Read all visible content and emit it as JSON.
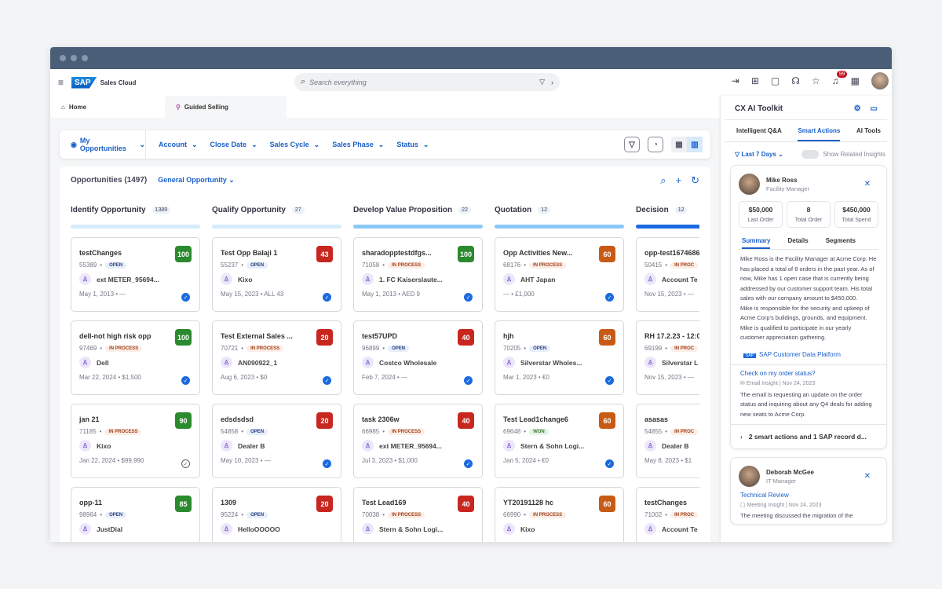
{
  "app": {
    "brand": "SAP",
    "product": "Sales Cloud",
    "search_placeholder": "Search everything",
    "notification_count": "99"
  },
  "tabs": [
    {
      "label": "Home",
      "icon": "home-icon"
    },
    {
      "label": "Guided Selling",
      "icon": "guided-selling-icon",
      "active": true
    }
  ],
  "filters": {
    "my": "My Opportunities",
    "items": [
      "Account",
      "Close Date",
      "Sales Cycle",
      "Sales Phase",
      "Status"
    ]
  },
  "board": {
    "title": "Opportunities (1497)",
    "type": "General Opportunity"
  },
  "colors": {
    "green": "#2b8a2e",
    "red": "#c8271f",
    "orange": "#c75b16",
    "accent": "#1a5fc9"
  },
  "columns": [
    {
      "name": "Identify Opportunity",
      "count": "1389",
      "bar": "#d6ecfb",
      "cards": [
        {
          "title": "testChanges",
          "id": "55389",
          "status": "OPEN",
          "account": "ext METER_95694...",
          "date": "May 1, 2013 • —",
          "score": "100",
          "color": "green",
          "check": "filled"
        },
        {
          "title": "dell-not high risk opp",
          "id": "97469",
          "status": "IN PROCESS",
          "account": "Dell",
          "date": "Mar 22, 2024 • $1,500",
          "score": "100",
          "color": "green",
          "check": "filled"
        },
        {
          "title": "jan 21",
          "id": "71185",
          "status": "IN PROCESS",
          "account": "Kixo",
          "date": "Jan 22, 2024 • $99,990",
          "score": "90",
          "color": "green",
          "check": "outline"
        },
        {
          "title": "opp-11",
          "id": "98964",
          "status": "OPEN",
          "account": "JustDial",
          "score": "85",
          "color": "green"
        }
      ]
    },
    {
      "name": "Qualify Opportunity",
      "count": "27",
      "bar": "#d6ecfb",
      "cards": [
        {
          "title": "Test Opp Balaji 1",
          "id": "55237",
          "status": "OPEN",
          "account": "Kixo",
          "date": "May 15, 2023 • ALL 43",
          "score": "43",
          "color": "red",
          "check": "filled"
        },
        {
          "title": "Test External Sales ...",
          "id": "70721",
          "status": "IN PROCESS",
          "account": "AN090922_1",
          "date": "Aug 6, 2023 • $0",
          "score": "20",
          "color": "red",
          "check": "filled"
        },
        {
          "title": "edsdsdsd",
          "id": "54858",
          "status": "OPEN",
          "account": "Dealer B",
          "date": "May 10, 2023 • —",
          "score": "20",
          "color": "red",
          "check": "filled"
        },
        {
          "title": "1309",
          "id": "95224",
          "status": "OPEN",
          "account": "HelloOOOOO",
          "score": "20",
          "color": "red"
        }
      ]
    },
    {
      "name": "Develop Value Proposition",
      "count": "22",
      "bar": "#8cc8f5",
      "cards": [
        {
          "title": "sharadopptestdfgs...",
          "id": "71058",
          "status": "IN PROCESS",
          "account": "1. FC Kaiserslaute...",
          "date": "May 1, 2013 • AED 9",
          "score": "100",
          "color": "green",
          "check": "filled"
        },
        {
          "title": "test57UPD",
          "id": "96899",
          "status": "OPEN",
          "account": "Costco Wholesale",
          "date": "Feb 7, 2024 • —",
          "score": "40",
          "color": "red",
          "check": "filled"
        },
        {
          "title": "task 2306w",
          "id": "66985",
          "status": "IN PROCESS",
          "account": "ext METER_95694...",
          "date": "Jul 3, 2023 • $1,000",
          "score": "40",
          "color": "red",
          "check": "filled"
        },
        {
          "title": "Test Lead169",
          "id": "70038",
          "status": "IN PROCESS",
          "account": "Stern & Sohn Logi...",
          "score": "40",
          "color": "red"
        }
      ]
    },
    {
      "name": "Quotation",
      "count": "12",
      "bar": "#8cc8f5",
      "cards": [
        {
          "title": "Opp Activities New...",
          "id": "68176",
          "status": "IN PROCESS",
          "account": "AHT Japan",
          "date": "— • £1,000",
          "score": "60",
          "color": "orange",
          "check": "filled"
        },
        {
          "title": "hjh",
          "id": "70205",
          "status": "OPEN",
          "account": "Silverstar Wholes...",
          "date": "Mar 1, 2023 • €0",
          "score": "60",
          "color": "orange",
          "check": "filled"
        },
        {
          "title": "Test Lead1change6",
          "id": "69648",
          "status": "WON",
          "account": "Stern & Sohn Logi...",
          "date": "Jan 5, 2024 • €0",
          "score": "60",
          "color": "orange",
          "check": "filled"
        },
        {
          "title": "YT20191128 hc",
          "id": "66990",
          "status": "IN PROCESS",
          "account": "Kixo",
          "score": "60",
          "color": "orange"
        }
      ]
    },
    {
      "name": "Decision",
      "count": "12",
      "bar": "#1b6ae0",
      "cards": [
        {
          "title": "opp-test1674686",
          "id": "50415",
          "status": "IN PROC",
          "account": "Account Te",
          "date": "Nov 15, 2023 • —"
        },
        {
          "title": "RH 17.2.23 - 12:0",
          "id": "69199",
          "status": "IN PROC",
          "account": "Silverstar L",
          "date": "Nov 15, 2023 • —"
        },
        {
          "title": "asasas",
          "id": "54855",
          "status": "IN PROC",
          "account": "Dealer B",
          "date": "May 8, 2023 • $1"
        },
        {
          "title": "testChanges",
          "id": "71002",
          "status": "IN PROC",
          "account": "Account Te"
        }
      ]
    }
  ],
  "panel": {
    "title": "CX AI Toolkit",
    "tabs": [
      "Intelligent Q&A",
      "Smart Actions",
      "AI Tools"
    ],
    "filter": "Last 7 Days",
    "toggle": "Show Related Insights",
    "card1": {
      "name": "Mike Ross",
      "role": "Facility Manager",
      "stats": [
        {
          "v": "$50,000",
          "l": "Last Order"
        },
        {
          "v": "8",
          "l": "Total Order"
        },
        {
          "v": "$450,000",
          "l": "Total Spend"
        }
      ],
      "tabs": [
        "Summary",
        "Details",
        "Segments"
      ],
      "summary": "Mike Ross is the Facility Manager at Acme Corp. He has placed a total of 8 orders in the past year. As of now, Mike has 1 open case that is currently being addressed by our customer support team. His total sales with our company amount to $450,000.",
      "summary2": "Mike is responsible for the security and upkeep of Acme Corp's buildings, grounds, and equipment. Mike is qualified to participate in our yearly customer appreciation gathering.",
      "source": "SAP Customer Data Platform",
      "insight_q": "Check on my order status?",
      "insight_meta": "Email Insight | Nov 24, 2023",
      "insight_text": "The email is requesting an update on the order status and inquiring about any Q4 deals for adding new seats to Acme Corp.",
      "more": "2 smart actions and 1 SAP record d..."
    },
    "card2": {
      "name": "Deborah McGee",
      "role": "IT Manager",
      "insight_q": "Technical Review",
      "insight_meta": "Meeting Insight | Nov 24, 2023",
      "insight_text": "The meeting discussed the migration of the"
    }
  }
}
